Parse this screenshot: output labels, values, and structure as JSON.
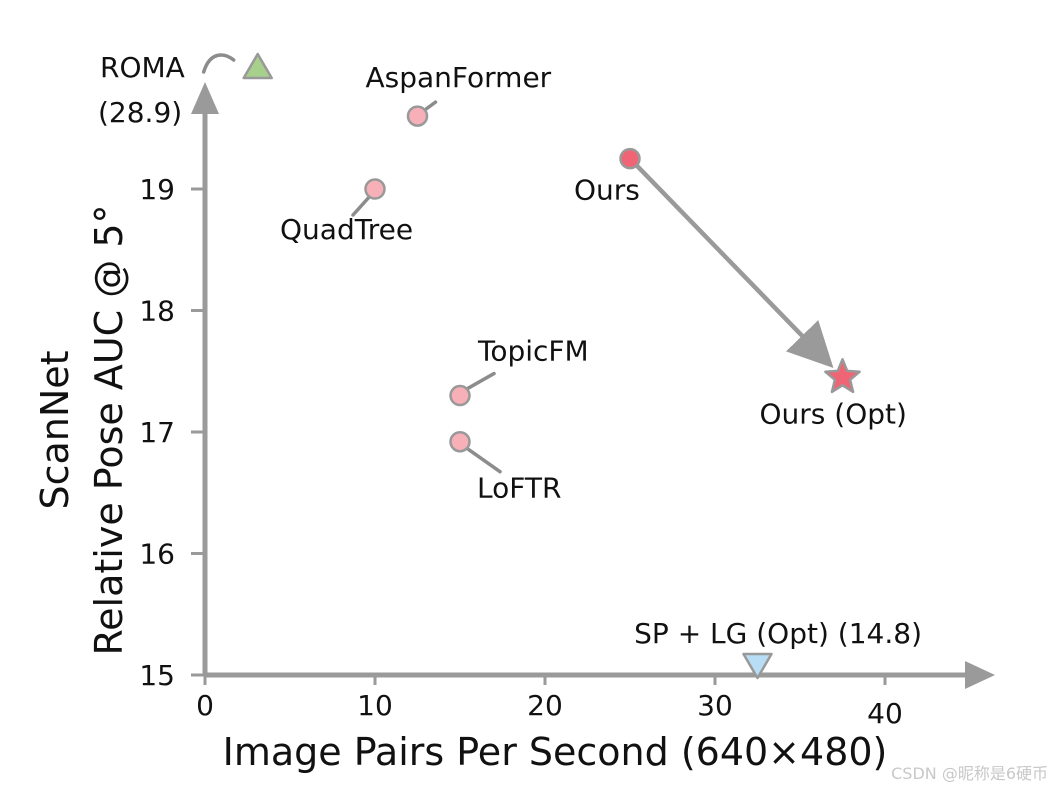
{
  "chart_data": {
    "type": "scatter",
    "xlabel": "Image Pairs Per Second (640×480)",
    "ylabel_lines": [
      "ScanNet",
      "Relative Pose AUC @ 5°"
    ],
    "xlim": [
      0,
      46
    ],
    "ylim": [
      15,
      20.4
    ],
    "x_ticks": [
      0,
      10,
      20,
      30,
      40
    ],
    "y_ticks": [
      15,
      16,
      17,
      18,
      19
    ],
    "points": [
      {
        "name": "AspanFormer",
        "x": 12.5,
        "y": 19.6,
        "marker": "circle",
        "color": "#f7b0b8"
      },
      {
        "name": "QuadTree",
        "x": 10.0,
        "y": 19.0,
        "marker": "circle",
        "color": "#f7b0b8"
      },
      {
        "name": "Ours",
        "x": 25.0,
        "y": 19.25,
        "marker": "circle",
        "color": "#f06575"
      },
      {
        "name": "Ours (Opt)",
        "x": 37.5,
        "y": 17.45,
        "marker": "star",
        "color": "#f06575"
      },
      {
        "name": "TopicFM",
        "x": 15.0,
        "y": 17.3,
        "marker": "circle",
        "color": "#f7b0b8"
      },
      {
        "name": "LoFTR",
        "x": 15.0,
        "y": 16.92,
        "marker": "circle",
        "color": "#f7b0b8"
      }
    ],
    "offscale": [
      {
        "name": "ROMA",
        "value_label": "(28.9)",
        "x": 3.1,
        "marker": "triangle-up",
        "color": "#a8d08d"
      },
      {
        "name": "SP + LG (Opt) (14.8)",
        "x": 32.5,
        "marker": "triangle-down",
        "color": "#b8def5"
      }
    ],
    "arrow": {
      "from": "Ours",
      "to": "Ours (Opt)"
    },
    "colors": {
      "axis": "#9a9a9a",
      "leader": "#8c8c8c",
      "point_stroke": "#999999"
    }
  },
  "watermark": "CSDN @昵称是6硬币"
}
